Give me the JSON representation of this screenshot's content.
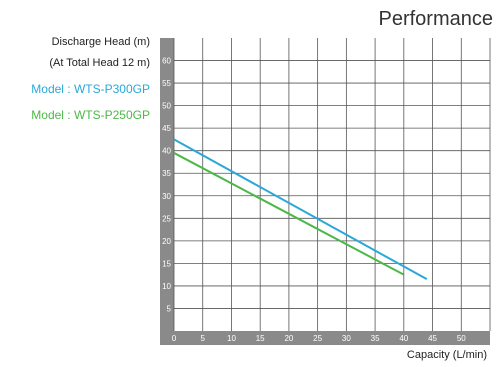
{
  "chart_data": {
    "type": "line",
    "title": "Performance",
    "ylabel_lines": [
      "Discharge Head (m)",
      "(At Total Head 12 m)"
    ],
    "xlabel": "Capacity (L/min)",
    "xlim": [
      0,
      55
    ],
    "ylim": [
      0,
      65
    ],
    "x_ticks": [
      0,
      5,
      10,
      15,
      20,
      25,
      30,
      35,
      40,
      45,
      50
    ],
    "y_ticks": [
      5,
      10,
      15,
      20,
      25,
      30,
      35,
      40,
      45,
      50,
      55,
      60
    ],
    "grid": true,
    "legend_placement": "left",
    "series": [
      {
        "name": "Model : WTS-P300GP",
        "color": "#2aa8d8",
        "x": [
          0,
          44
        ],
        "y": [
          42.5,
          11.5
        ]
      },
      {
        "name": "Model : WTS-P250GP",
        "color": "#4cb848",
        "x": [
          0,
          40
        ],
        "y": [
          39.5,
          12.5
        ]
      }
    ]
  },
  "colors": {
    "axis_band": "#8a8a8a",
    "grid": "#555555"
  }
}
